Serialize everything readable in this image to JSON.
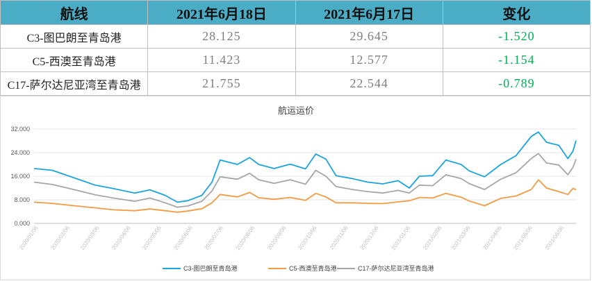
{
  "table": {
    "headers": [
      "航线",
      "2021年6月18日",
      "2021年6月17日",
      "变化"
    ],
    "rows": [
      {
        "route": "C3-图巴朗至青岛港",
        "d1": "28.125",
        "d2": "29.645",
        "change": "-1.520"
      },
      {
        "route": "C5-西澳至青岛港",
        "d1": "11.423",
        "d2": "12.577",
        "change": "-1.154"
      },
      {
        "route": "C17-萨尔达尼亚湾至青岛港",
        "d1": "21.755",
        "d2": "22.544",
        "change": "-0.789"
      }
    ]
  },
  "colors": {
    "header_bg": "#4bacc6",
    "change": "#00b050",
    "c3": "#1aa3dc",
    "c5": "#f39a43",
    "c17": "#a6a6a6"
  },
  "chart_data": {
    "type": "line",
    "title": "航运运价",
    "xlabel": "",
    "ylabel": "",
    "ylim": [
      0,
      32
    ],
    "y_ticks": [
      "0.000",
      "8.000",
      "16.000",
      "24.000",
      "32.000"
    ],
    "x_ticks": [
      "2020/01/06",
      "2020/02/06",
      "2020/03/06",
      "2020/04/06",
      "2020/05/06",
      "2020/06/06",
      "2020/07/06",
      "2020/08/06",
      "2020/09/06",
      "2020/10/06",
      "2020/11/06",
      "2020/12/06",
      "2021/01/06",
      "2021/02/06",
      "2021/03/06",
      "2021/04/06",
      "2021/05/06",
      "2021/06/06"
    ],
    "legend_position": "bottom",
    "grid": true,
    "series": [
      {
        "name": "C3-图巴朗至青岛港",
        "color": "#1aa3dc",
        "x": [
          "2020/01/02",
          "2020/01/20",
          "2020/02/10",
          "2020/03/02",
          "2020/03/20",
          "2020/04/10",
          "2020/04/25",
          "2020/05/10",
          "2020/05/22",
          "2020/06/01",
          "2020/06/15",
          "2020/06/25",
          "2020/07/03",
          "2020/07/20",
          "2020/08/01",
          "2020/08/10",
          "2020/08/25",
          "2020/09/10",
          "2020/09/25",
          "2020/10/05",
          "2020/10/15",
          "2020/10/25",
          "2020/11/10",
          "2020/11/25",
          "2020/12/10",
          "2020/12/25",
          "2021/01/05",
          "2021/01/15",
          "2021/01/28",
          "2021/02/10",
          "2021/02/25",
          "2021/03/05",
          "2021/03/20",
          "2021/04/05",
          "2021/04/20",
          "2021/05/05",
          "2021/05/12",
          "2021/05/20",
          "2021/06/01",
          "2021/06/10",
          "2021/06/15",
          "2021/06/18"
        ],
        "values": [
          18.6,
          18.0,
          15.5,
          13.0,
          11.8,
          10.3,
          11.4,
          9.5,
          7.2,
          7.7,
          9.5,
          14.0,
          21.5,
          20.0,
          22.3,
          20.0,
          18.6,
          20.1,
          18.5,
          23.5,
          21.8,
          16.2,
          15.2,
          14.0,
          13.4,
          14.5,
          12.0,
          16.0,
          16.2,
          21.5,
          20.0,
          17.8,
          15.8,
          20.0,
          23.0,
          29.5,
          31.0,
          27.5,
          26.5,
          22.0,
          24.5,
          28.1
        ]
      },
      {
        "name": "C5-西澳至青岛港",
        "color": "#f39a43",
        "x": [
          "2020/01/02",
          "2020/01/20",
          "2020/02/10",
          "2020/03/02",
          "2020/03/20",
          "2020/04/10",
          "2020/04/25",
          "2020/05/10",
          "2020/05/22",
          "2020/06/01",
          "2020/06/15",
          "2020/06/25",
          "2020/07/03",
          "2020/07/20",
          "2020/08/01",
          "2020/08/10",
          "2020/08/25",
          "2020/09/10",
          "2020/09/25",
          "2020/10/05",
          "2020/10/15",
          "2020/10/25",
          "2020/11/10",
          "2020/11/25",
          "2020/12/10",
          "2020/12/25",
          "2021/01/05",
          "2021/01/15",
          "2021/01/28",
          "2021/02/10",
          "2021/02/25",
          "2021/03/05",
          "2021/03/20",
          "2021/04/05",
          "2021/04/20",
          "2021/05/05",
          "2021/05/12",
          "2021/05/20",
          "2021/06/01",
          "2021/06/10",
          "2021/06/15",
          "2021/06/18"
        ],
        "values": [
          7.2,
          6.8,
          6.0,
          5.3,
          4.6,
          4.3,
          4.9,
          4.3,
          3.8,
          4.2,
          5.0,
          7.0,
          9.8,
          9.0,
          10.5,
          8.7,
          8.2,
          8.8,
          7.8,
          10.2,
          9.0,
          7.0,
          7.0,
          6.8,
          6.7,
          7.3,
          7.7,
          8.8,
          8.6,
          10.2,
          8.9,
          7.6,
          6.0,
          8.5,
          9.3,
          11.5,
          14.8,
          12.0,
          10.8,
          9.8,
          11.9,
          11.4
        ]
      },
      {
        "name": "C17-萨尔达尼亚湾至青岛港",
        "color": "#a6a6a6",
        "x": [
          "2020/01/02",
          "2020/01/20",
          "2020/02/10",
          "2020/03/02",
          "2020/03/20",
          "2020/04/10",
          "2020/04/25",
          "2020/05/10",
          "2020/05/22",
          "2020/06/01",
          "2020/06/15",
          "2020/06/25",
          "2020/07/03",
          "2020/07/20",
          "2020/08/01",
          "2020/08/10",
          "2020/08/25",
          "2020/09/10",
          "2020/09/25",
          "2020/10/05",
          "2020/10/15",
          "2020/10/25",
          "2020/11/10",
          "2020/11/25",
          "2020/12/10",
          "2020/12/25",
          "2021/01/05",
          "2021/01/15",
          "2021/01/28",
          "2021/02/10",
          "2021/02/25",
          "2021/03/05",
          "2021/03/20",
          "2021/04/05",
          "2021/04/20",
          "2021/05/05",
          "2021/05/12",
          "2021/05/20",
          "2021/06/01",
          "2021/06/10",
          "2021/06/15",
          "2021/06/18"
        ],
        "values": [
          14.0,
          13.2,
          11.5,
          9.7,
          8.6,
          7.5,
          8.6,
          7.0,
          5.5,
          5.9,
          7.5,
          11.0,
          15.8,
          15.0,
          17.0,
          14.8,
          13.6,
          14.8,
          13.3,
          18.0,
          16.0,
          12.5,
          11.5,
          10.8,
          10.3,
          11.2,
          10.3,
          13.0,
          12.8,
          16.5,
          15.2,
          13.5,
          11.5,
          15.0,
          17.2,
          22.0,
          23.7,
          20.5,
          19.8,
          16.5,
          19.0,
          21.8
        ]
      }
    ]
  }
}
